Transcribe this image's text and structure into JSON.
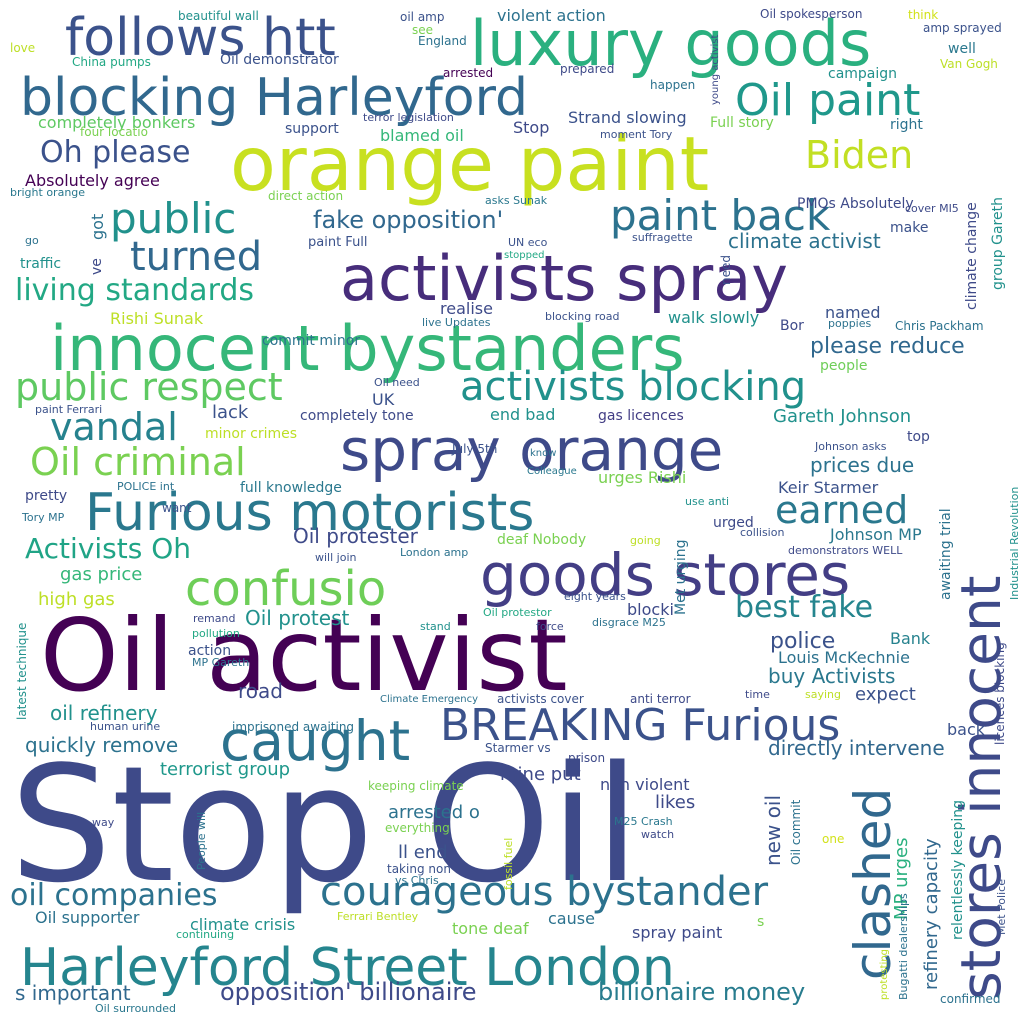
{
  "words": [
    "Stop Oil",
    "Oil activist",
    "orange paint",
    "innocent bystanders",
    "activists spray",
    "spray orange",
    "Furious motorists",
    "goods stores",
    "luxury goods",
    "blocking Harleyford",
    "follows htt",
    "Harleyford Street London",
    "caught",
    "BREAKING Furious",
    "courageous bystander",
    "stores innocent",
    "clashed",
    "confusio",
    "Oil paint",
    "public",
    "paint back",
    "turned",
    "activists blocking",
    "public respect",
    "Oil criminal",
    "vandal",
    "earned",
    "Biden",
    "Oh please",
    "living standards",
    "Activists Oh",
    "best fake",
    "oil companies",
    "opposition' billionaire",
    "billionaire money",
    "s important",
    "fake opposition'",
    "climate activist",
    "quickly remove",
    "oil refinery",
    "Oil protester",
    "Oil protest",
    "police",
    "buy Activists",
    "directly intervene",
    "expect",
    "Louis McKechnie",
    "Bank",
    "road",
    "please reduce",
    "prices due",
    "Gareth Johnson",
    "Keir Starmer",
    "Johnson MP",
    "gas price",
    "high gas",
    "terrorist group",
    "mine put",
    "arrested o",
    "ll end",
    "likes",
    "new oil",
    "non violent",
    "MP urges",
    "refinery capacity",
    "relentlessly keeping",
    "spray paint",
    "tone deaf",
    "cause",
    "climate crisis",
    "Oil supporter",
    "end bad",
    "gas licences",
    "UK",
    "completely tone",
    "lack",
    "minor crimes",
    "full knowledge",
    "urges Rishi",
    "July 5th",
    "realise",
    "commit minor",
    "walk slowly",
    "named",
    "Bor",
    "Rishi Sunak",
    "Chris Packham",
    "poppies",
    "people",
    "top",
    "Johnson asks",
    "blocking road",
    "live Updates",
    "UN eco",
    "stopped",
    "suffragette",
    "paint Full",
    "got",
    "ve",
    "traffic",
    "go",
    "bright orange",
    "Absolutely agree",
    "completely bonkers",
    "four locatio",
    "support",
    "blamed oil",
    "Stop",
    "Strand slowing",
    "terror legislation",
    "moment Tory",
    "Full story",
    "right",
    "campaign",
    "well",
    "Van Gogh",
    "amp sprayed",
    "think",
    "Oil spokesperson",
    "young activist",
    "happen",
    "prepared",
    "arrested",
    "Oil demonstrator",
    "violent action",
    "oil amp",
    "see",
    "England",
    "beautiful wall",
    "love",
    "China pumps",
    "direct action",
    "asks Sunak",
    "PMQs Absolutely",
    "make",
    "cover MI5",
    "climate change",
    "group Gareth",
    "need",
    "Oil need",
    "paint Ferrari",
    "know",
    "Colleague",
    "POLICE int",
    "pretty",
    "Tory MP",
    "want",
    "use anti",
    "urged",
    "Industrial Revolution",
    "awaiting trial",
    "collision",
    "demonstrators WELL",
    "going",
    "Met urging",
    "deaf Nobody",
    "will join",
    "London amp",
    "latest technique",
    "remand",
    "pollution",
    "eight years",
    "Oil protestor",
    "blocki",
    "stand",
    "force",
    "disgrace M25",
    "action",
    "MP Gareth",
    "licences blocking",
    "Climate Emergency",
    "activists cover",
    "anti terror",
    "time",
    "saying",
    "imprisoned awaiting",
    "human urine",
    "back",
    "Starmer vs",
    "prison",
    "keeping climate",
    "everything",
    "People will",
    "way",
    "fossil fuel",
    "M25 Crash",
    "watch",
    "Oil commit",
    "one",
    "taking non",
    "vs Chris",
    "Ferrari Bentley",
    "continuing",
    "s",
    "Met Police",
    "Bugatti dealerships",
    "protesting",
    "confirmed",
    "Oil surrounded"
  ]
}
